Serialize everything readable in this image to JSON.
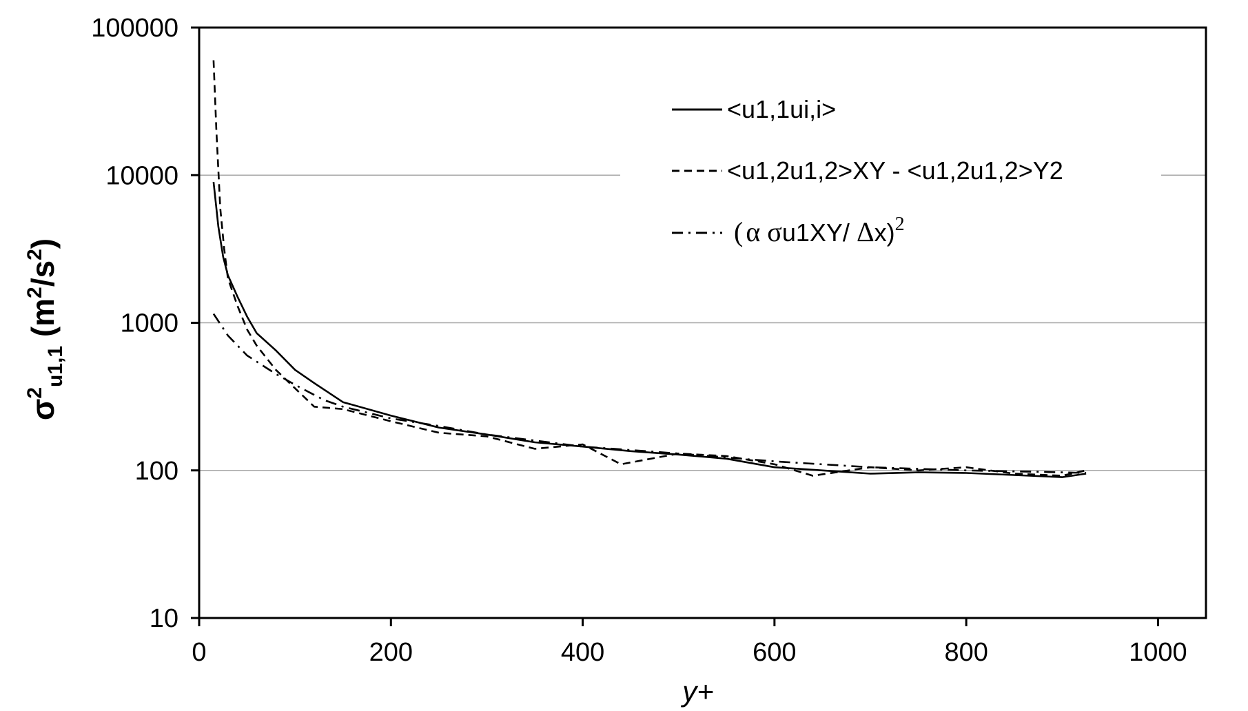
{
  "chart_data": {
    "type": "line",
    "xlabel": "y+",
    "ylabel": {
      "symbol": "σ",
      "sup": "2",
      "sub": "u1,1",
      "units_open": " (m",
      "units_sup1": "2",
      "units_mid": "/s",
      "units_sup2": "2",
      "units_close": ")"
    },
    "xlim": [
      0,
      1050
    ],
    "ylim": [
      10,
      100000
    ],
    "yscale": "log",
    "x_ticks": [
      "0",
      "200",
      "400",
      "600",
      "800",
      "1000"
    ],
    "x_tick_values": [
      0,
      200,
      400,
      600,
      800,
      1000
    ],
    "y_ticks": [
      "10",
      "100",
      "1000",
      "10000",
      "100000"
    ],
    "y_tick_values": [
      10,
      100,
      1000,
      10000,
      100000
    ],
    "grid": "horizontal",
    "legend_position": "top-right",
    "legend": {
      "solid": "<u1,1ui,i>",
      "dashed": "<u1,2u1,2>XY - <u1,2u1,2>Y2",
      "dashdot_open": "(",
      "dashdot_alpha": "α",
      "dashdot_sigma": " σ",
      "dashdot_mid": "u1XY/ ",
      "dashdot_delta": "Δ",
      "dashdot_end": "x)",
      "dashdot_sup": "2"
    },
    "series": [
      {
        "name": "<u1,1ui,i>",
        "style": "solid",
        "x": [
          15,
          20,
          25,
          30,
          40,
          50,
          60,
          80,
          100,
          120,
          150,
          200,
          250,
          300,
          350,
          400,
          450,
          500,
          550,
          600,
          650,
          700,
          750,
          800,
          850,
          900,
          925
        ],
        "y": [
          9000,
          4500,
          2800,
          2100,
          1500,
          1100,
          850,
          650,
          480,
          390,
          290,
          235,
          195,
          175,
          155,
          145,
          135,
          128,
          120,
          105,
          100,
          95,
          97,
          96,
          93,
          90,
          95
        ]
      },
      {
        "name": "<u1,2u1,2>XY - <u1,2u1,2>Y2",
        "style": "dashed",
        "x": [
          15,
          18,
          22,
          26,
          30,
          40,
          50,
          60,
          80,
          100,
          120,
          150,
          200,
          250,
          300,
          350,
          400,
          440,
          500,
          550,
          600,
          640,
          700,
          750,
          800,
          850,
          900,
          925
        ],
        "y": [
          60000,
          20000,
          6000,
          3200,
          2000,
          1300,
          900,
          700,
          480,
          360,
          270,
          260,
          215,
          180,
          170,
          140,
          150,
          110,
          130,
          125,
          110,
          92,
          105,
          100,
          105,
          95,
          92,
          100
        ]
      },
      {
        "name": "(α σu1XY/ Δx)2",
        "style": "dashdot",
        "x": [
          15,
          30,
          50,
          80,
          100,
          130,
          150,
          200,
          250,
          300,
          400,
          500,
          600,
          700,
          800,
          900,
          925
        ],
        "y": [
          1150,
          820,
          600,
          450,
          380,
          300,
          270,
          225,
          200,
          175,
          145,
          130,
          115,
          105,
          100,
          97,
          96
        ]
      }
    ]
  }
}
